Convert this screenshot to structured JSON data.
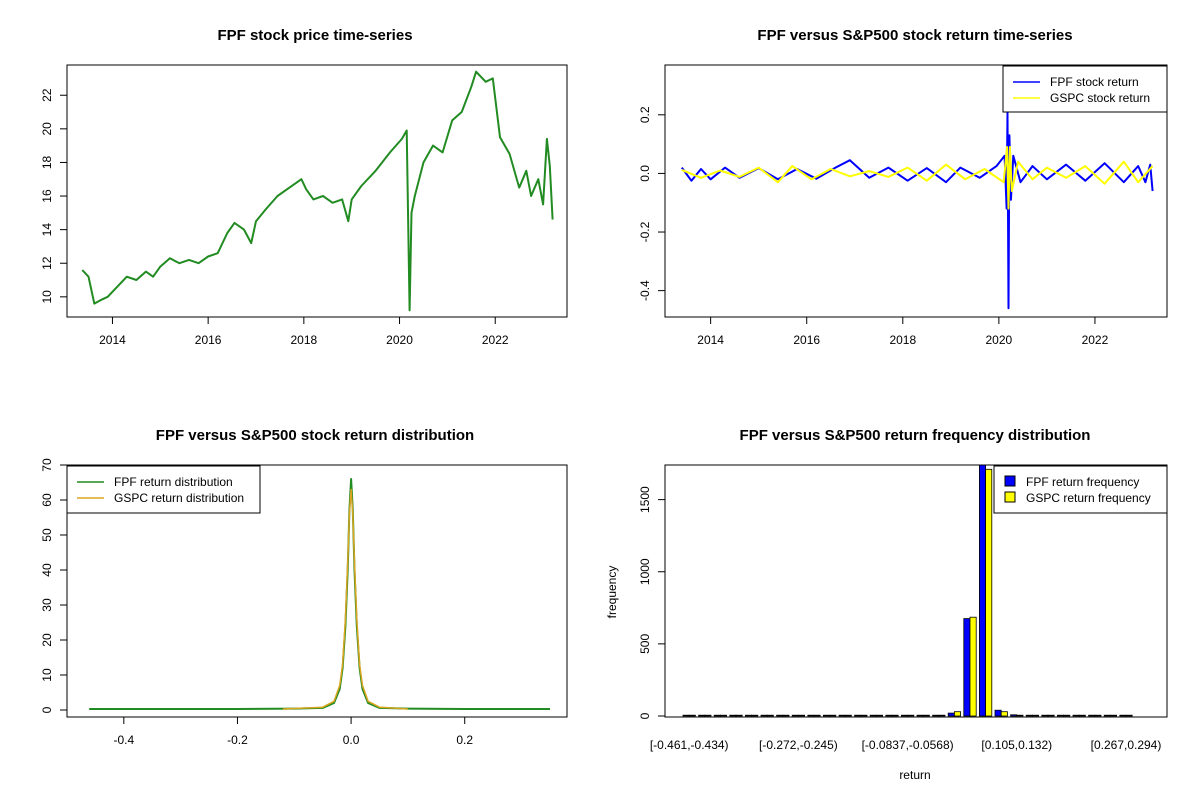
{
  "colors": {
    "fpf_price": "#228B22",
    "fpf_return": "#0000FF",
    "gspc_return": "#FFFF00",
    "fpf_density": "#228B22",
    "gspc_density": "#DAA520",
    "fpf_bar": "#0000FF",
    "gspc_bar": "#FFFF00"
  },
  "chart_data": [
    {
      "type": "line",
      "title": "FPF stock price time-series",
      "xlabel": "",
      "ylabel": "",
      "xlim": [
        2013.05,
        2023.5
      ],
      "ylim": [
        8.8,
        23.8
      ],
      "xticks": [
        2014,
        2016,
        2018,
        2020,
        2022
      ],
      "xtick_labels": [
        "2014",
        "2016",
        "2018",
        "2020",
        "2022"
      ],
      "yticks": [
        10,
        12,
        14,
        16,
        18,
        20,
        22
      ],
      "ytick_labels": [
        "10",
        "12",
        "14",
        "16",
        "18",
        "20",
        "22"
      ],
      "grid": false,
      "series": [
        {
          "color_key": "fpf_price",
          "x": [
            2013.37,
            2013.5,
            2013.62,
            2013.75,
            2013.9,
            2014.1,
            2014.3,
            2014.5,
            2014.7,
            2014.85,
            2015.0,
            2015.2,
            2015.4,
            2015.6,
            2015.8,
            2016.0,
            2016.2,
            2016.4,
            2016.55,
            2016.75,
            2016.9,
            2017.0,
            2017.2,
            2017.45,
            2017.7,
            2017.95,
            2018.05,
            2018.2,
            2018.4,
            2018.6,
            2018.8,
            2018.93,
            2019.0,
            2019.2,
            2019.5,
            2019.8,
            2020.05,
            2020.15,
            2020.21,
            2020.25,
            2020.32,
            2020.5,
            2020.7,
            2020.9,
            2021.1,
            2021.3,
            2021.5,
            2021.6,
            2021.8,
            2021.95,
            2022.1,
            2022.3,
            2022.5,
            2022.65,
            2022.75,
            2022.9,
            2023.0,
            2023.08,
            2023.14,
            2023.2
          ],
          "y": [
            11.6,
            11.2,
            9.6,
            9.8,
            10.0,
            10.6,
            11.2,
            11.0,
            11.5,
            11.2,
            11.8,
            12.3,
            12.0,
            12.2,
            12.0,
            12.4,
            12.6,
            13.8,
            14.4,
            14.0,
            13.2,
            14.5,
            15.2,
            16.0,
            16.5,
            17.0,
            16.4,
            15.8,
            16.0,
            15.6,
            15.8,
            14.5,
            15.8,
            16.6,
            17.5,
            18.6,
            19.4,
            19.9,
            9.2,
            15.0,
            16.0,
            18.0,
            19.0,
            18.6,
            20.5,
            21.0,
            22.5,
            23.4,
            22.8,
            23.0,
            19.5,
            18.5,
            16.5,
            17.5,
            16.0,
            17.0,
            15.5,
            19.4,
            17.8,
            14.6
          ]
        }
      ]
    },
    {
      "type": "line",
      "title": "FPF versus S&P500 stock return time-series",
      "xlabel": "",
      "ylabel": "",
      "xlim": [
        2013.05,
        2023.5
      ],
      "ylim": [
        -0.49,
        0.37
      ],
      "xticks": [
        2014,
        2016,
        2018,
        2020,
        2022
      ],
      "xtick_labels": [
        "2014",
        "2016",
        "2018",
        "2020",
        "2022"
      ],
      "yticks": [
        -0.4,
        -0.2,
        0.0,
        0.2
      ],
      "ytick_labels": [
        "-0.4",
        "-0.2",
        "0.0",
        "0.2"
      ],
      "grid": false,
      "legend_position": "top-right",
      "legend": [
        "FPF stock return",
        "GSPC stock return"
      ],
      "series": [
        {
          "name": "FPF stock return",
          "color_key": "fpf_return",
          "x": [
            2013.4,
            2013.6,
            2013.8,
            2014.0,
            2014.3,
            2014.6,
            2015.0,
            2015.4,
            2015.8,
            2016.2,
            2016.6,
            2016.9,
            2017.3,
            2017.7,
            2018.1,
            2018.5,
            2018.9,
            2019.2,
            2019.6,
            2019.95,
            2020.12,
            2020.16,
            2020.18,
            2020.2,
            2020.22,
            2020.25,
            2020.3,
            2020.45,
            2020.7,
            2021.0,
            2021.4,
            2021.8,
            2022.2,
            2022.6,
            2022.9,
            2023.05,
            2023.15,
            2023.2
          ],
          "y": [
            0.02,
            -0.025,
            0.015,
            -0.02,
            0.02,
            -0.015,
            0.018,
            -0.02,
            0.015,
            -0.018,
            0.02,
            0.045,
            -0.015,
            0.02,
            -0.025,
            0.018,
            -0.03,
            0.02,
            -0.015,
            0.025,
            0.06,
            -0.12,
            0.21,
            -0.46,
            0.13,
            -0.09,
            0.06,
            -0.03,
            0.025,
            -0.02,
            0.03,
            -0.025,
            0.035,
            -0.03,
            0.025,
            -0.03,
            0.03,
            -0.06
          ]
        },
        {
          "name": "GSPC stock return",
          "color_key": "gspc_return",
          "x": [
            2013.4,
            2013.8,
            2014.2,
            2014.6,
            2015.0,
            2015.4,
            2015.7,
            2016.1,
            2016.5,
            2016.9,
            2017.3,
            2017.7,
            2018.1,
            2018.5,
            2018.9,
            2019.3,
            2019.7,
            2020.1,
            2020.17,
            2020.2,
            2020.23,
            2020.27,
            2020.4,
            2020.7,
            2021.0,
            2021.4,
            2021.8,
            2022.2,
            2022.6,
            2022.9,
            2023.2
          ],
          "y": [
            0.012,
            -0.015,
            0.01,
            -0.012,
            0.02,
            -0.03,
            0.025,
            -0.02,
            0.015,
            -0.01,
            0.008,
            -0.012,
            0.02,
            -0.025,
            0.03,
            -0.02,
            0.015,
            -0.03,
            0.09,
            -0.12,
            0.09,
            -0.06,
            0.04,
            -0.02,
            0.02,
            -0.015,
            0.025,
            -0.035,
            0.04,
            -0.03,
            0.025
          ]
        }
      ]
    },
    {
      "type": "line",
      "title": "FPF versus S&P500 stock return distribution",
      "xlabel": "",
      "ylabel": "",
      "xlim": [
        -0.5,
        0.38
      ],
      "ylim": [
        -2,
        70
      ],
      "xticks": [
        -0.4,
        -0.2,
        0.0,
        0.2
      ],
      "xtick_labels": [
        "-0.4",
        "-0.2",
        "0.0",
        "0.2"
      ],
      "yticks": [
        0,
        10,
        20,
        30,
        40,
        50,
        60,
        70
      ],
      "ytick_labels": [
        "0",
        "10",
        "20",
        "30",
        "40",
        "50",
        "60",
        "70"
      ],
      "grid": false,
      "legend_position": "top-left",
      "legend": [
        "FPF return distribution",
        "GSPC return distribution"
      ],
      "series": [
        {
          "name": "FPF return distribution",
          "color_key": "fpf_density",
          "x": [
            -0.461,
            -0.2,
            -0.1,
            -0.05,
            -0.03,
            -0.02,
            -0.015,
            -0.01,
            -0.006,
            -0.003,
            0.0,
            0.003,
            0.006,
            0.01,
            0.015,
            0.02,
            0.03,
            0.05,
            0.1,
            0.2,
            0.35
          ],
          "y": [
            0.3,
            0.3,
            0.4,
            0.6,
            2.0,
            6.0,
            12.0,
            24.0,
            40.0,
            57.0,
            66.0,
            57.0,
            40.0,
            24.0,
            12.0,
            6.0,
            2.0,
            0.6,
            0.4,
            0.3,
            0.3
          ]
        },
        {
          "name": "GSPC return distribution",
          "color_key": "gspc_density",
          "x": [
            -0.12,
            -0.05,
            -0.03,
            -0.02,
            -0.015,
            -0.01,
            -0.006,
            -0.003,
            0.0,
            0.003,
            0.006,
            0.01,
            0.015,
            0.02,
            0.03,
            0.05,
            0.1
          ],
          "y": [
            0.3,
            0.8,
            2.5,
            7.0,
            13.0,
            26.0,
            42.0,
            56.0,
            63.0,
            56.0,
            42.0,
            26.0,
            13.0,
            7.0,
            2.5,
            0.8,
            0.3
          ]
        }
      ]
    },
    {
      "type": "bar",
      "title": "FPF versus S&P500 return frequency distribution",
      "xlabel": "return",
      "ylabel": "frequency",
      "ylim": [
        0,
        1740
      ],
      "yticks": [
        0,
        500,
        1000,
        1500
      ],
      "ytick_labels": [
        "0",
        "500",
        "1000",
        "1500"
      ],
      "grid": false,
      "legend_position": "top-right",
      "legend": [
        "FPF return frequency",
        "GSPC return frequency"
      ],
      "category_count": 29,
      "categories_shown": [
        {
          "index": 0,
          "label": "[-0.461,-0.434)"
        },
        {
          "index": 7,
          "label": "[-0.272,-0.245)"
        },
        {
          "index": 14,
          "label": "[-0.0837,-0.0568)"
        },
        {
          "index": 21,
          "label": "[0.105,0.132)"
        },
        {
          "index": 28,
          "label": "[0.267,0.294)"
        }
      ],
      "series": [
        {
          "name": "FPF return frequency",
          "color_key": "fpf_bar",
          "values": [
            1,
            0,
            0,
            0,
            0,
            0,
            0,
            0,
            0,
            0,
            0,
            0,
            0,
            0,
            0,
            4,
            5,
            20,
            675,
            1740,
            40,
            8,
            4,
            1,
            0,
            0,
            0,
            0,
            0
          ]
        },
        {
          "name": "GSPC return frequency",
          "color_key": "gspc_bar",
          "values": [
            0,
            0,
            0,
            0,
            0,
            0,
            0,
            0,
            0,
            0,
            0,
            0,
            0,
            0,
            0,
            0,
            3,
            30,
            685,
            1710,
            30,
            3,
            0,
            0,
            0,
            0,
            0,
            0,
            0
          ]
        }
      ]
    }
  ]
}
